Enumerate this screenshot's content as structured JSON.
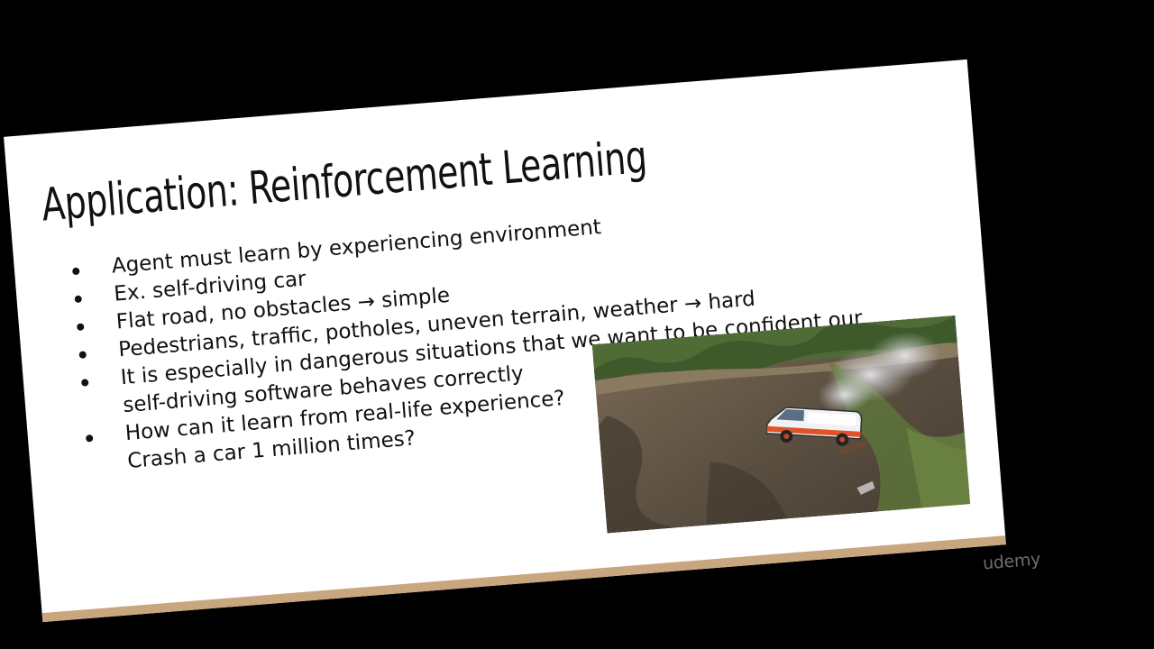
{
  "slide": {
    "title": "Application: Reinforcement Learning",
    "bullets": [
      {
        "lines": [
          "Agent must learn by experiencing environment"
        ]
      },
      {
        "lines": [
          "Ex. self-driving car"
        ]
      },
      {
        "lines": [
          "Flat road, no obstacles → simple"
        ]
      },
      {
        "lines": [
          "Pedestrians, traffic, potholes, uneven terrain, weather → hard"
        ]
      },
      {
        "lines": [
          "It is especially in dangerous situations that we want to be confident our",
          "self-driving software behaves correctly"
        ]
      },
      {
        "lines": [
          "How can it learn from real-life experience?",
          "Crash a car 1 million times?"
        ]
      }
    ],
    "image_subject": "van-crashing-off-cliff-photo"
  },
  "watermark": {
    "text": "udemy"
  },
  "colors": {
    "background": "#000000",
    "slide": "#ffffff",
    "slide_band": "#c9a77e",
    "text": "#111111",
    "watermark": "#6d6d6d"
  }
}
